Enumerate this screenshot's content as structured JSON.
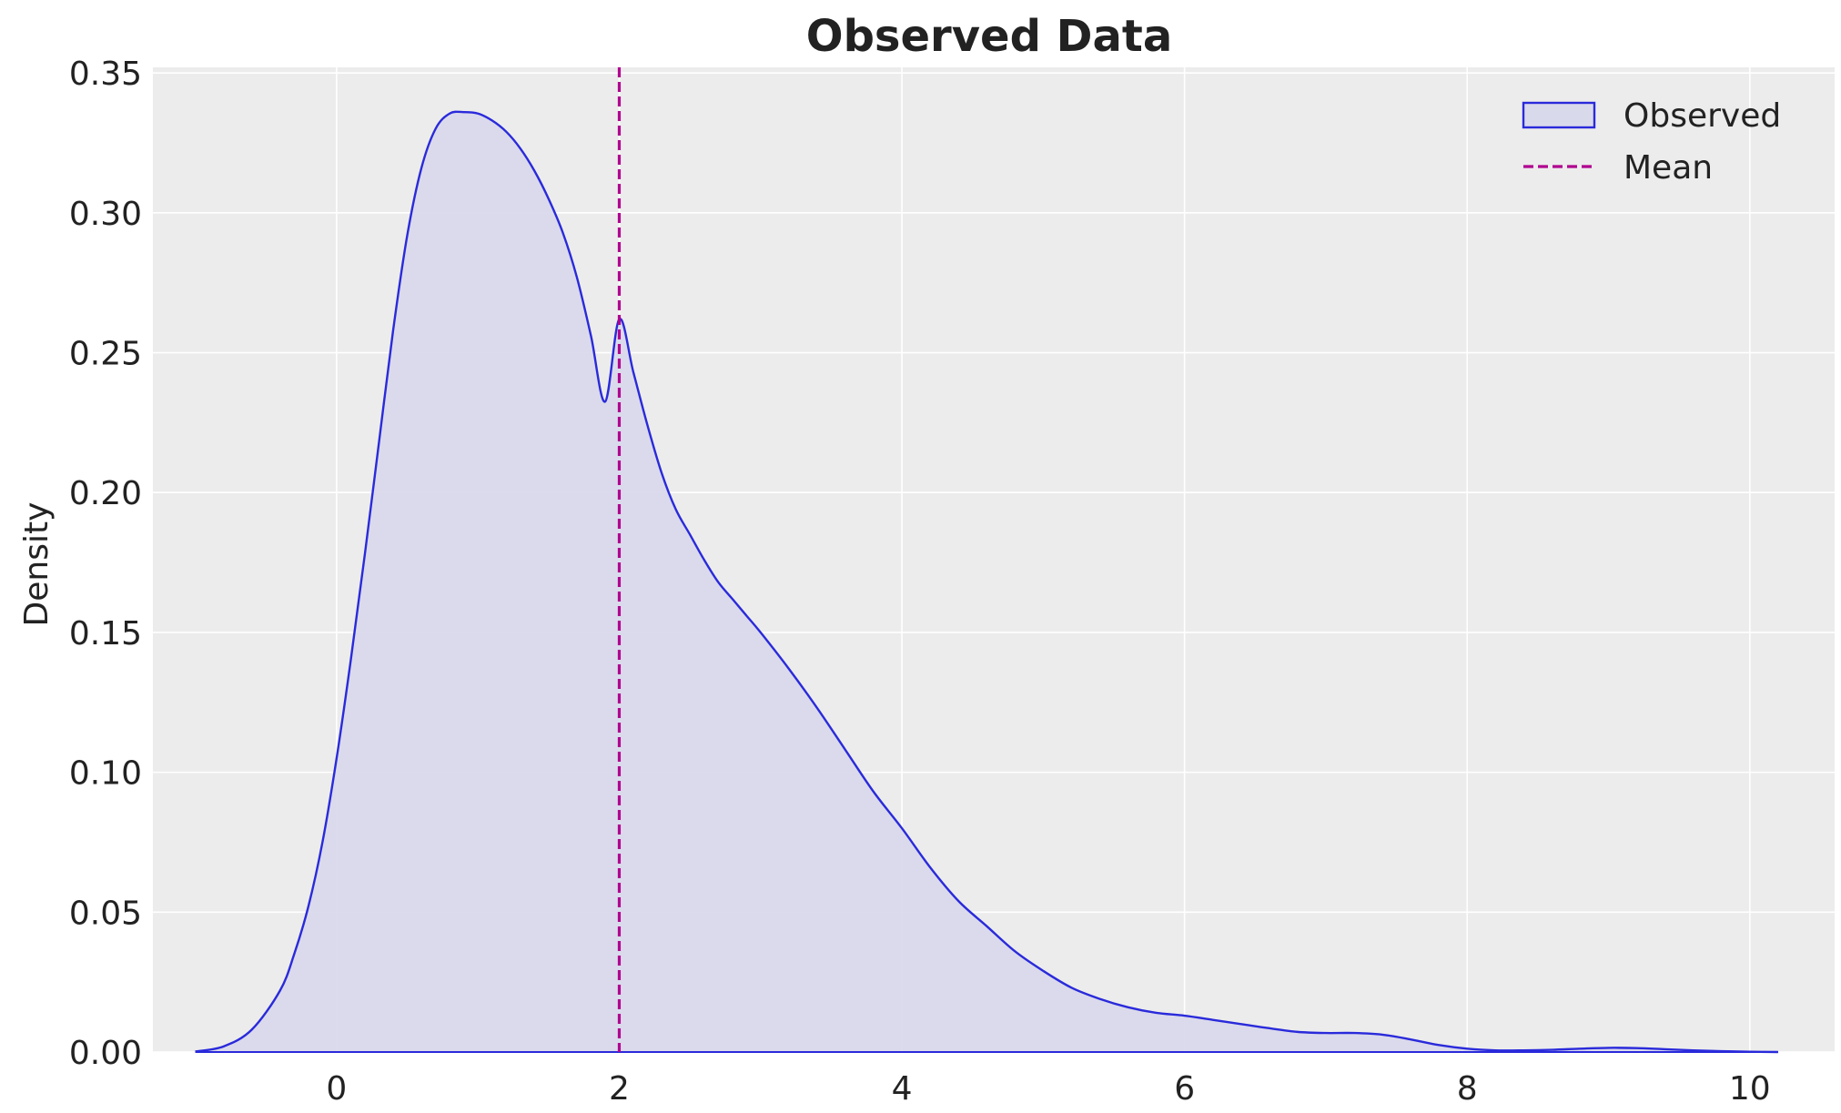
{
  "chart_data": {
    "type": "area",
    "title": "Observed Data",
    "xlabel": "",
    "ylabel": "Density",
    "xlim": [
      -1.3,
      10.6
    ],
    "ylim": [
      0,
      0.352
    ],
    "xticks": [
      0,
      2,
      4,
      6,
      8,
      10
    ],
    "yticks": [
      0.0,
      0.05,
      0.1,
      0.15,
      0.2,
      0.25,
      0.3,
      0.35
    ],
    "ytick_labels": [
      "0.00",
      "0.05",
      "0.10",
      "0.15",
      "0.20",
      "0.25",
      "0.30",
      "0.35"
    ],
    "grid": true,
    "legend_position": "top-right",
    "colors": {
      "background": "#ececec",
      "grid": "#ffffff",
      "kde_line": "#2a2adb",
      "kde_fill": "#d9d9ec",
      "mean_line": "#b0008f"
    },
    "series": [
      {
        "name": "Observed",
        "x": [
          -1.0,
          -0.8,
          -0.6,
          -0.4,
          -0.3,
          -0.2,
          -0.1,
          0.0,
          0.1,
          0.2,
          0.3,
          0.4,
          0.5,
          0.6,
          0.7,
          0.8,
          0.9,
          1.0,
          1.1,
          1.2,
          1.3,
          1.4,
          1.5,
          1.6,
          1.7,
          1.8,
          1.9,
          2.0,
          2.1,
          2.2,
          2.3,
          2.4,
          2.5,
          2.6,
          2.7,
          2.8,
          2.9,
          3.0,
          3.2,
          3.4,
          3.6,
          3.8,
          4.0,
          4.2,
          4.4,
          4.6,
          4.8,
          5.0,
          5.2,
          5.4,
          5.6,
          5.8,
          6.0,
          6.2,
          6.4,
          6.6,
          6.8,
          7.0,
          7.2,
          7.4,
          7.6,
          7.8,
          8.0,
          8.2,
          8.4,
          8.6,
          8.8,
          9.0,
          9.2,
          9.4,
          9.6,
          9.8,
          10.0,
          10.2
        ],
        "y": [
          0.0002,
          0.002,
          0.008,
          0.022,
          0.035,
          0.052,
          0.075,
          0.105,
          0.14,
          0.178,
          0.218,
          0.258,
          0.292,
          0.316,
          0.33,
          0.3355,
          0.336,
          0.3355,
          0.333,
          0.329,
          0.323,
          0.315,
          0.305,
          0.293,
          0.277,
          0.256,
          0.2325,
          0.262,
          0.243,
          0.224,
          0.207,
          0.194,
          0.185,
          0.176,
          0.168,
          0.162,
          0.156,
          0.15,
          0.137,
          0.123,
          0.108,
          0.093,
          0.08,
          0.066,
          0.054,
          0.045,
          0.036,
          0.029,
          0.023,
          0.019,
          0.016,
          0.014,
          0.013,
          0.0115,
          0.01,
          0.0085,
          0.0072,
          0.0068,
          0.0068,
          0.0062,
          0.0045,
          0.0025,
          0.0012,
          0.0006,
          0.0006,
          0.0008,
          0.0012,
          0.0015,
          0.0014,
          0.001,
          0.0006,
          0.0003,
          0.0001,
          0.0
        ]
      },
      {
        "name": "Mean",
        "x_value": 2.0
      }
    ]
  }
}
